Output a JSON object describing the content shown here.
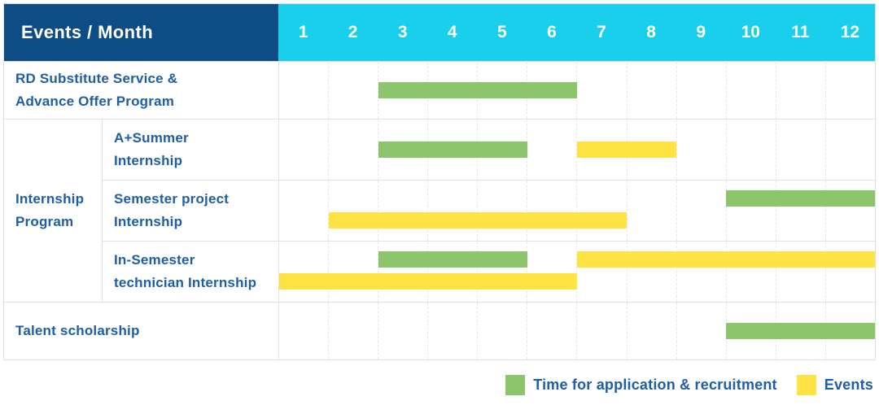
{
  "colors": {
    "header_bg": "#0E4C85",
    "months_bg": "#19CFEC",
    "label_text": "#1D5EA5",
    "green": "#8CC56B",
    "yellow": "#FFE342",
    "border": "#E2E2E2",
    "grid_line": "#E7E7E7"
  },
  "chart_data": {
    "type": "table",
    "subtype": "gantt-schedule",
    "title": "Events / Month",
    "months": [
      "1",
      "2",
      "3",
      "4",
      "5",
      "6",
      "7",
      "8",
      "9",
      "10",
      "11",
      "12"
    ],
    "group_label": "Internship\nProgram",
    "rows": [
      {
        "label": "RD Substitute Service &\nAdvance Offer Program",
        "group": null,
        "bars": [
          {
            "color": "green",
            "kind": "application",
            "start": 3,
            "end": 6,
            "line": "single"
          }
        ]
      },
      {
        "label": "A+Summer\nInternship",
        "group": "Internship Program",
        "bars": [
          {
            "color": "green",
            "kind": "application",
            "start": 3,
            "end": 5,
            "line": "single"
          },
          {
            "color": "yellow",
            "kind": "event",
            "start": 7,
            "end": 8,
            "line": "single"
          }
        ]
      },
      {
        "label": "Semester project\nInternship",
        "group": "Internship Program",
        "bars": [
          {
            "color": "green",
            "kind": "application",
            "start": 10,
            "end": 12,
            "line": "upper"
          },
          {
            "color": "yellow",
            "kind": "event",
            "start": 2,
            "end": 7,
            "line": "lower"
          }
        ]
      },
      {
        "label": "In-Semester\ntechnician Internship",
        "group": "Internship Program",
        "bars": [
          {
            "color": "green",
            "kind": "application",
            "start": 3,
            "end": 5,
            "line": "upper"
          },
          {
            "color": "yellow",
            "kind": "event",
            "start": 7,
            "end": 12,
            "line": "upper"
          },
          {
            "color": "yellow",
            "kind": "event",
            "start": 1,
            "end": 6,
            "line": "lower"
          }
        ]
      },
      {
        "label": "Talent scholarship",
        "group": null,
        "bars": [
          {
            "color": "green",
            "kind": "application",
            "start": 10,
            "end": 12,
            "line": "single"
          }
        ]
      }
    ],
    "legend": [
      {
        "color": "#8CC56B",
        "kind": "application",
        "label": "Time for application & recruitment"
      },
      {
        "color": "#FFE342",
        "kind": "event",
        "label": "Events"
      }
    ]
  }
}
